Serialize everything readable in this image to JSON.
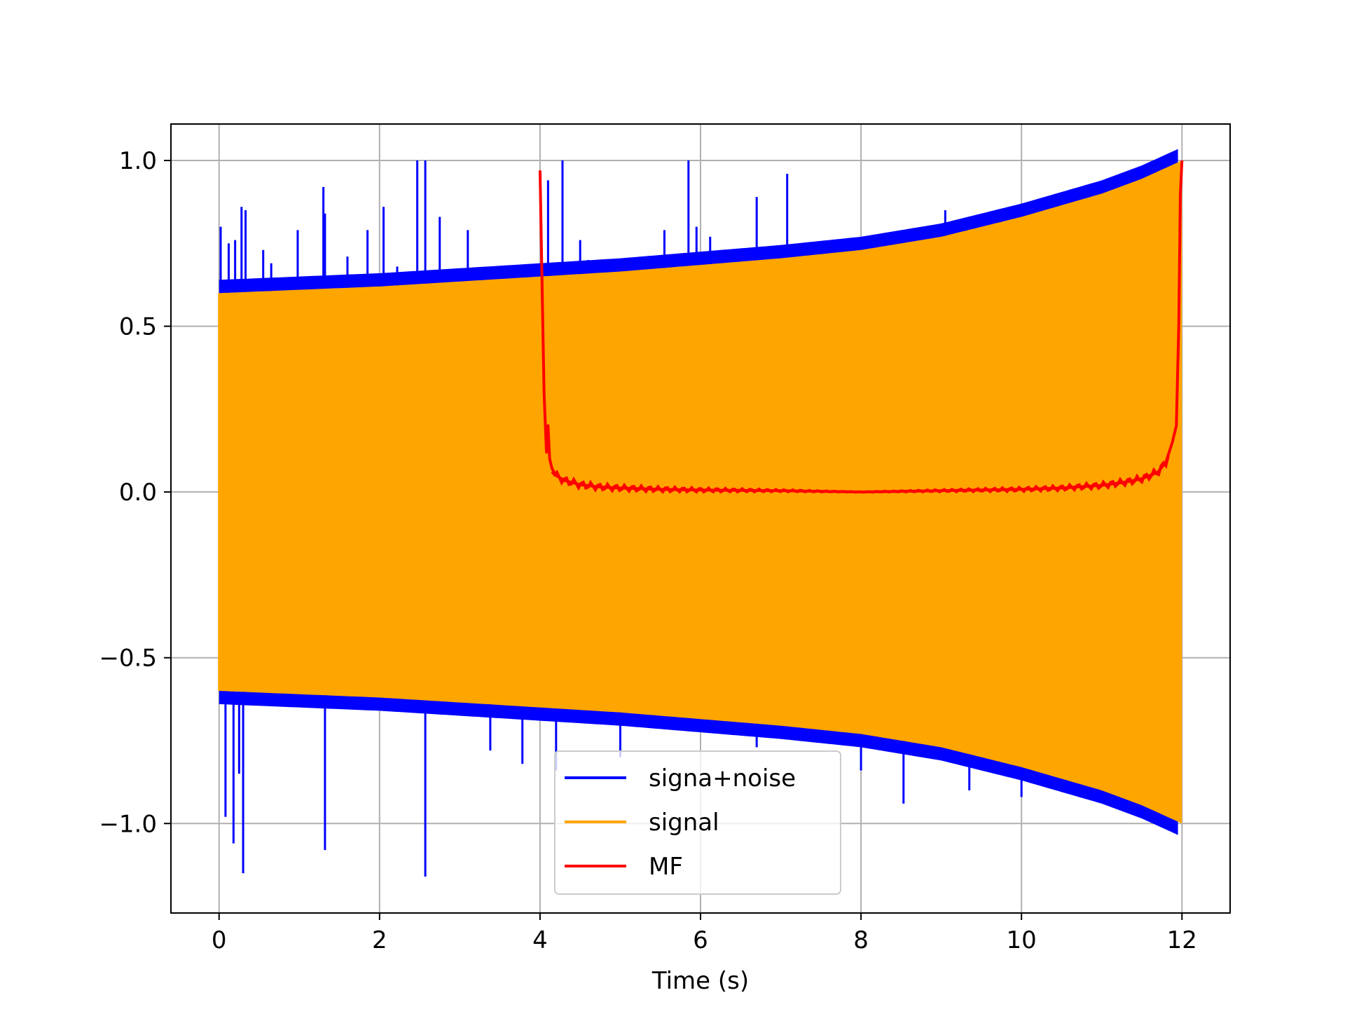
{
  "chart_data": {
    "type": "line",
    "title": "",
    "xlabel": "Time (s)",
    "ylabel": "",
    "xlim": [
      -0.6,
      12.6
    ],
    "ylim": [
      -1.27,
      1.11
    ],
    "xticks": [
      0,
      2,
      4,
      6,
      8,
      10,
      12
    ],
    "xtick_labels": [
      "0",
      "2",
      "4",
      "6",
      "8",
      "10",
      "12"
    ],
    "yticks": [
      -1.0,
      -0.5,
      0.0,
      0.5,
      1.0
    ],
    "ytick_labels": [
      "−1.0",
      "−0.5",
      "0.0",
      "0.5",
      "1.0"
    ],
    "grid": true,
    "legend_position": "lower center",
    "series": [
      {
        "name": "signa+noise",
        "color": "#0000ff",
        "description_type": "noisy chirp with spikes",
        "spikes": [
          {
            "x": 0.02,
            "y": 0.8
          },
          {
            "x": 0.12,
            "y": 0.75
          },
          {
            "x": 0.2,
            "y": 0.76
          },
          {
            "x": 0.28,
            "y": 0.86
          },
          {
            "x": 0.33,
            "y": 0.85
          },
          {
            "x": 0.55,
            "y": 0.73
          },
          {
            "x": 0.65,
            "y": 0.69
          },
          {
            "x": 0.98,
            "y": 0.79
          },
          {
            "x": 1.3,
            "y": 0.92
          },
          {
            "x": 1.32,
            "y": 0.84
          },
          {
            "x": 1.6,
            "y": 0.71
          },
          {
            "x": 1.85,
            "y": 0.79
          },
          {
            "x": 2.05,
            "y": 0.86
          },
          {
            "x": 2.22,
            "y": 0.68
          },
          {
            "x": 2.47,
            "y": 1.0
          },
          {
            "x": 2.57,
            "y": 1.0
          },
          {
            "x": 2.75,
            "y": 0.83
          },
          {
            "x": 3.1,
            "y": 0.79
          },
          {
            "x": 4.1,
            "y": 0.94
          },
          {
            "x": 4.28,
            "y": 1.0
          },
          {
            "x": 4.5,
            "y": 0.76
          },
          {
            "x": 4.6,
            "y": 0.7
          },
          {
            "x": 5.55,
            "y": 0.79
          },
          {
            "x": 5.85,
            "y": 1.0
          },
          {
            "x": 5.95,
            "y": 0.8
          },
          {
            "x": 6.12,
            "y": 0.77
          },
          {
            "x": 6.7,
            "y": 0.89
          },
          {
            "x": 7.08,
            "y": 0.96
          },
          {
            "x": 9.05,
            "y": 0.85
          },
          {
            "x": 9.3,
            "y": 0.8
          },
          {
            "x": 9.73,
            "y": 0.82
          },
          {
            "x": 0.08,
            "y": -0.98
          },
          {
            "x": 0.18,
            "y": -1.06
          },
          {
            "x": 0.25,
            "y": -0.85
          },
          {
            "x": 0.3,
            "y": -1.15
          },
          {
            "x": 1.32,
            "y": -1.08
          },
          {
            "x": 2.57,
            "y": -1.16
          },
          {
            "x": 3.38,
            "y": -0.78
          },
          {
            "x": 3.78,
            "y": -0.82
          },
          {
            "x": 4.2,
            "y": -0.84
          },
          {
            "x": 5.0,
            "y": -0.8
          },
          {
            "x": 6.7,
            "y": -0.77
          },
          {
            "x": 8.0,
            "y": -0.84
          },
          {
            "x": 8.53,
            "y": -0.94
          },
          {
            "x": 9.35,
            "y": -0.9
          },
          {
            "x": 10.0,
            "y": -0.92
          }
        ]
      },
      {
        "name": "signal",
        "color": "#ffa500",
        "description_type": "chirp envelope",
        "envelope_x": [
          0,
          1,
          2,
          3,
          4,
          5,
          6,
          7,
          8,
          9,
          10,
          11,
          11.5,
          12
        ],
        "envelope_upper": [
          0.6,
          0.61,
          0.62,
          0.635,
          0.65,
          0.665,
          0.685,
          0.705,
          0.73,
          0.77,
          0.83,
          0.9,
          0.945,
          1.0
        ],
        "envelope_lower": [
          -0.6,
          -0.61,
          -0.62,
          -0.635,
          -0.65,
          -0.665,
          -0.685,
          -0.705,
          -0.73,
          -0.77,
          -0.83,
          -0.9,
          -0.945,
          -1.0
        ]
      },
      {
        "name": "MF",
        "color": "#ff0000",
        "x": [
          4.0,
          4.02,
          4.05,
          4.08,
          4.1,
          4.12,
          4.15,
          4.2,
          4.3,
          4.5,
          4.75,
          5.0,
          5.5,
          6.0,
          7.0,
          8.0,
          9.0,
          10.0,
          10.5,
          11.0,
          11.3,
          11.5,
          11.7,
          11.8,
          11.88,
          11.93,
          11.96,
          11.98,
          12.0
        ],
        "y": [
          0.97,
          0.7,
          0.3,
          0.12,
          0.2,
          0.1,
          0.07,
          0.05,
          0.035,
          0.022,
          0.015,
          0.012,
          0.008,
          0.006,
          0.004,
          0.0,
          0.004,
          0.008,
          0.012,
          0.02,
          0.03,
          0.04,
          0.06,
          0.09,
          0.15,
          0.2,
          0.5,
          0.9,
          1.0
        ]
      }
    ]
  }
}
